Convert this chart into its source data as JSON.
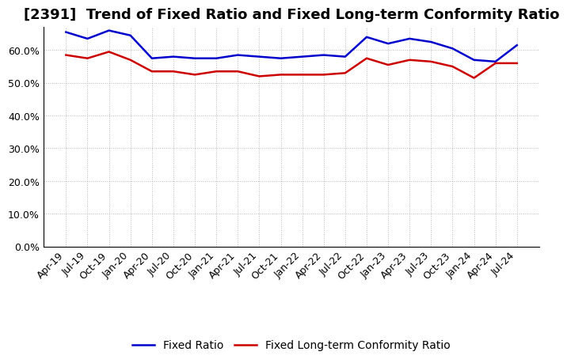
{
  "title": "[2391]  Trend of Fixed Ratio and Fixed Long-term Conformity Ratio",
  "x_labels": [
    "Apr-19",
    "Jul-19",
    "Oct-19",
    "Jan-20",
    "Apr-20",
    "Jul-20",
    "Oct-20",
    "Jan-21",
    "Apr-21",
    "Jul-21",
    "Oct-21",
    "Jan-22",
    "Apr-22",
    "Jul-22",
    "Oct-22",
    "Jan-23",
    "Apr-23",
    "Jul-23",
    "Oct-23",
    "Jan-24",
    "Apr-24",
    "Jul-24"
  ],
  "fixed_ratio": [
    65.5,
    63.5,
    66.0,
    64.5,
    57.5,
    58.0,
    57.5,
    57.5,
    58.5,
    58.0,
    57.5,
    58.0,
    58.5,
    58.0,
    64.0,
    62.0,
    63.5,
    62.5,
    60.5,
    57.0,
    56.5,
    61.5
  ],
  "fixed_lt_ratio": [
    58.5,
    57.5,
    59.5,
    57.0,
    53.5,
    53.5,
    52.5,
    53.5,
    53.5,
    52.0,
    52.5,
    52.5,
    52.5,
    53.0,
    57.5,
    55.5,
    57.0,
    56.5,
    55.0,
    51.5,
    56.0,
    56.0
  ],
  "ylim": [
    0,
    67
  ],
  "yticks": [
    0,
    10,
    20,
    30,
    40,
    50,
    60
  ],
  "ytick_labels": [
    "0.0%",
    "10.0%",
    "20.0%",
    "30.0%",
    "40.0%",
    "50.0%",
    "60.0%"
  ],
  "line_color_fixed": "#0000cc",
  "line_color_lt": "#cc0000",
  "legend_fixed": "Fixed Ratio",
  "legend_lt": "Fixed Long-term Conformity Ratio",
  "background_color": "#ffffff",
  "plot_bg_color": "#ffffff",
  "grid_color": "#999999",
  "title_fontsize": 13,
  "axis_fontsize": 9,
  "legend_fontsize": 10
}
